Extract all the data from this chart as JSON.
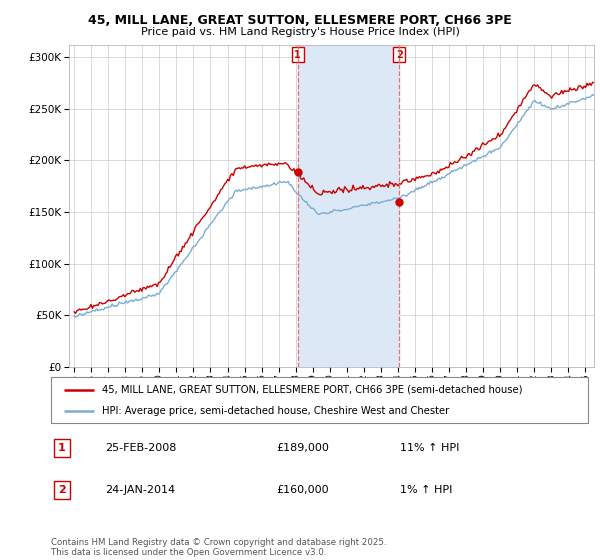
{
  "title1": "45, MILL LANE, GREAT SUTTON, ELLESMERE PORT, CH66 3PE",
  "title2": "Price paid vs. HM Land Registry's House Price Index (HPI)",
  "ytick_values": [
    0,
    50000,
    100000,
    150000,
    200000,
    250000,
    300000
  ],
  "ylim": [
    0,
    312000
  ],
  "xlim_start": 1994.7,
  "xlim_end": 2025.5,
  "purchase1_date": 2008.12,
  "purchase1_price": 189000,
  "purchase2_date": 2014.07,
  "purchase2_price": 160000,
  "legend_line1": "45, MILL LANE, GREAT SUTTON, ELLESMERE PORT, CH66 3PE (semi-detached house)",
  "legend_line2": "HPI: Average price, semi-detached house, Cheshire West and Chester",
  "annotation1_label": "1",
  "annotation1_date": "25-FEB-2008",
  "annotation1_price": "£189,000",
  "annotation1_hpi": "11% ↑ HPI",
  "annotation2_label": "2",
  "annotation2_date": "24-JAN-2014",
  "annotation2_price": "£160,000",
  "annotation2_hpi": "1% ↑ HPI",
  "footer": "Contains HM Land Registry data © Crown copyright and database right 2025.\nThis data is licensed under the Open Government Licence v3.0.",
  "price_line_color": "#cc0000",
  "hpi_line_color": "#7aadd4",
  "hpi_span_color": "#dce8f5",
  "vline_color": "#e87070",
  "box_color": "#cc0000",
  "grid_color": "#cccccc"
}
